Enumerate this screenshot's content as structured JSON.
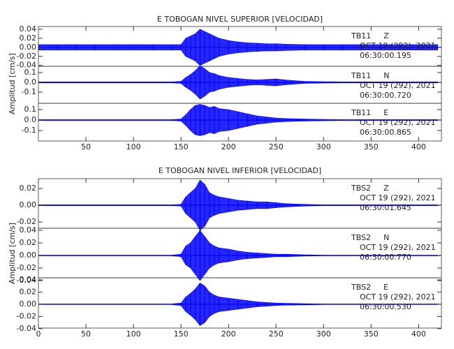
{
  "chart_data": [
    {
      "type": "seismogram",
      "title": "E TOBOGAN NIVEL SUPERIOR [VELOCIDAD]",
      "y_label": "Amplitud [cm/s]",
      "xlim": [
        0,
        424
      ],
      "xticks": [
        50,
        100,
        150,
        200,
        250,
        300,
        350,
        400
      ],
      "x": [
        0,
        20,
        40,
        60,
        80,
        100,
        120,
        140,
        150,
        155,
        160,
        165,
        170,
        175,
        180,
        185,
        190,
        200,
        210,
        220,
        230,
        240,
        250,
        260,
        280,
        300,
        320,
        340,
        360,
        380,
        400,
        420
      ],
      "panels": [
        {
          "station": "TB11",
          "component": "Z",
          "date": "OCT 19 (292), 2021",
          "time": "06:30:00.195",
          "color": "#0000ff",
          "ylim": [
            -0.042,
            0.046
          ],
          "yticks": [
            {
              "value": 0.04,
              "label": "0.04"
            },
            {
              "value": 0.02,
              "label": "0.02"
            },
            {
              "value": 0,
              "label": "0.00"
            },
            {
              "value": -0.02,
              "label": "-0.02"
            },
            {
              "value": -0.04,
              "label": "-0.04"
            }
          ],
          "values": [
            0.006,
            0.006,
            0.006,
            0.006,
            0.006,
            0.006,
            0.006,
            0.006,
            0.006,
            0.02,
            0.025,
            0.03,
            0.04,
            0.035,
            0.03,
            0.025,
            0.02,
            0.015,
            0.012,
            0.01,
            0.009,
            0.008,
            0.008,
            0.007,
            0.006,
            0.006,
            0.006,
            0.006,
            0.006,
            0.006,
            0.006,
            0.006
          ]
        },
        {
          "station": "TB11",
          "component": "N",
          "date": "OCT 19 (292), 2021",
          "time": "06:30:00.720",
          "color": "#0000ff",
          "ylim": [
            -0.214,
            0.164
          ],
          "yticks": [
            {
              "value": 0.1,
              "label": "0.1"
            },
            {
              "value": 0,
              "label": "0.0"
            },
            {
              "value": -0.1,
              "label": "-0.1"
            }
          ],
          "values": [
            0.005,
            0.005,
            0.005,
            0.005,
            0.005,
            0.005,
            0.005,
            0.005,
            0.01,
            0.05,
            0.08,
            0.12,
            0.17,
            0.14,
            0.1,
            0.09,
            0.07,
            0.05,
            0.04,
            0.03,
            0.025,
            0.03,
            0.035,
            0.025,
            0.01,
            0.007,
            0.005,
            0.005,
            0.005,
            0.005,
            0.005,
            0.005
          ]
        },
        {
          "station": "TB11",
          "component": "E",
          "date": "OCT 19 (292), 2021",
          "time": "06:30:00.865",
          "color": "#0000ff",
          "ylim": [
            -0.2,
            0.16
          ],
          "yticks": [
            {
              "value": 0.1,
              "label": "0.1"
            },
            {
              "value": 0,
              "label": "0.0"
            },
            {
              "value": -0.1,
              "label": "-0.1"
            }
          ],
          "values": [
            0.004,
            0.004,
            0.004,
            0.004,
            0.004,
            0.004,
            0.004,
            0.004,
            0.01,
            0.05,
            0.1,
            0.14,
            0.15,
            0.14,
            0.12,
            0.13,
            0.11,
            0.1,
            0.08,
            0.06,
            0.04,
            0.03,
            0.02,
            0.015,
            0.01,
            0.006,
            0.004,
            0.004,
            0.004,
            0.004,
            0.004,
            0.004
          ]
        }
      ]
    },
    {
      "type": "seismogram",
      "title": "E TOBOGAN NIVEL INFERIOR [VELOCIDAD]",
      "y_label": "Amplitud [cm/s]",
      "xlim": [
        0,
        424
      ],
      "xticks": [
        0,
        50,
        100,
        150,
        200,
        250,
        300,
        350,
        400
      ],
      "x": [
        0,
        20,
        40,
        60,
        80,
        100,
        120,
        140,
        150,
        155,
        160,
        165,
        170,
        175,
        180,
        185,
        190,
        200,
        210,
        220,
        230,
        240,
        250,
        260,
        280,
        300,
        320,
        340,
        360,
        380,
        400,
        420
      ],
      "panels": [
        {
          "station": "TBS2",
          "component": "Z",
          "date": "OCT 19 (292), 2021",
          "time": "06:30:01.645",
          "color": "#0000ff",
          "ylim": [
            -0.0275,
            0.0317
          ],
          "yticks": [
            {
              "value": 0.02,
              "label": "0.02"
            },
            {
              "value": 0,
              "label": "0.00"
            },
            {
              "value": -0.02,
              "label": "-0.02"
            }
          ],
          "values": [
            0.0005,
            0.0005,
            0.0005,
            0.0005,
            0.0005,
            0.0005,
            0.0005,
            0.0005,
            0.001,
            0.01,
            0.015,
            0.02,
            0.03,
            0.025,
            0.015,
            0.012,
            0.01,
            0.008,
            0.006,
            0.005,
            0.004,
            0.004,
            0.003,
            0.002,
            0.001,
            0.0005,
            0.0005,
            0.0005,
            0.0005,
            0.0005,
            0.0005,
            0.0005
          ]
        },
        {
          "station": "TBS2",
          "component": "N",
          "date": "OCT 19 (292), 2021",
          "time": "06:30:00.770",
          "color": "#0000ff",
          "ylim": [
            -0.0356,
            0.0433
          ],
          "yticks": [
            {
              "value": 0.04,
              "label": "0.04"
            },
            {
              "value": 0.02,
              "label": "0.02"
            },
            {
              "value": 0,
              "label": "0.00"
            },
            {
              "value": -0.02,
              "label": "-0.02"
            },
            {
              "value": -0.04,
              "label": "-0.04"
            }
          ],
          "values": [
            0.0005,
            0.0005,
            0.0005,
            0.0005,
            0.0005,
            0.0005,
            0.0005,
            0.0005,
            0.002,
            0.015,
            0.02,
            0.03,
            0.04,
            0.03,
            0.02,
            0.015,
            0.012,
            0.01,
            0.007,
            0.005,
            0.004,
            0.003,
            0.002,
            0.002,
            0.001,
            0.0005,
            0.0005,
            0.0005,
            0.0005,
            0.0005,
            0.0005,
            0.0005
          ]
        },
        {
          "station": "TBS2",
          "component": "E",
          "date": "OCT 19 (292), 2021",
          "time": "06:30:00.530",
          "color": "#0000ff",
          "ylim": [
            -0.039,
            0.0434
          ],
          "yticks": [
            {
              "value": 0.04,
              "label": "0.04"
            },
            {
              "value": 0.02,
              "label": "0.02"
            },
            {
              "value": 0,
              "label": "0.00"
            },
            {
              "value": -0.02,
              "label": "-0.02"
            },
            {
              "value": -0.04,
              "label": "-0.04"
            }
          ],
          "values": [
            0.0005,
            0.0005,
            0.0005,
            0.0005,
            0.0005,
            0.0005,
            0.0005,
            0.0005,
            0.002,
            0.012,
            0.018,
            0.025,
            0.035,
            0.03,
            0.02,
            0.015,
            0.012,
            0.01,
            0.008,
            0.006,
            0.004,
            0.003,
            0.002,
            0.0015,
            0.001,
            0.0005,
            0.0005,
            0.0005,
            0.0005,
            0.0005,
            0.0005,
            0.0005
          ]
        }
      ]
    }
  ]
}
